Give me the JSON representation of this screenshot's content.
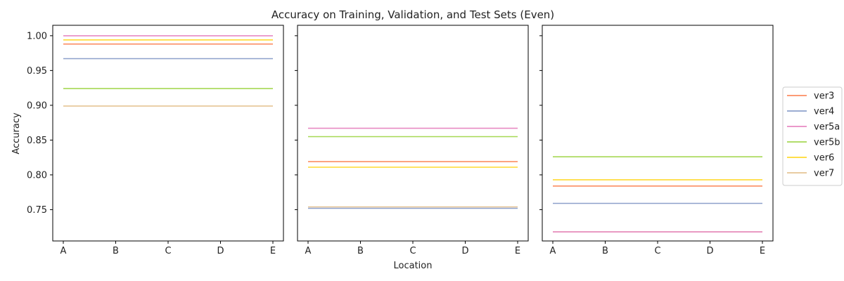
{
  "chart_data": {
    "type": "line",
    "title": "Accuracy on Training, Validation, and Test Sets (Even)",
    "xlabel": "Location",
    "ylabel": "Accuracy",
    "categories": [
      "A",
      "B",
      "C",
      "D",
      "E"
    ],
    "ylim": [
      0.705,
      1.015
    ],
    "yticks": [
      0.75,
      0.8,
      0.85,
      0.9,
      0.95,
      1.0
    ],
    "ytick_labels": [
      "0.75",
      "0.80",
      "0.85",
      "0.90",
      "0.95",
      "1.00"
    ],
    "grid": false,
    "legend_position": "right",
    "legend": [
      "ver3",
      "ver4",
      "ver5a",
      "ver5b",
      "ver6",
      "ver7"
    ],
    "colors": {
      "ver3": "#fc8d62",
      "ver4": "#8da0cb",
      "ver5a": "#e78ac3",
      "ver5b": "#a6d854",
      "ver6": "#ffd92f",
      "ver7": "#e5c494"
    },
    "panels": [
      {
        "series": [
          {
            "name": "ver5a",
            "values": [
              1.0,
              1.0,
              1.0,
              1.0,
              1.0
            ]
          },
          {
            "name": "ver6",
            "values": [
              0.994,
              0.994,
              0.994,
              0.994,
              0.994
            ]
          },
          {
            "name": "ver3",
            "values": [
              0.988,
              0.988,
              0.988,
              0.988,
              0.988
            ]
          },
          {
            "name": "ver4",
            "values": [
              0.967,
              0.967,
              0.967,
              0.967,
              0.967
            ]
          },
          {
            "name": "ver5b",
            "values": [
              0.924,
              0.924,
              0.924,
              0.924,
              0.924
            ]
          },
          {
            "name": "ver7",
            "values": [
              0.899,
              0.899,
              0.899,
              0.899,
              0.899
            ]
          }
        ]
      },
      {
        "series": [
          {
            "name": "ver5a",
            "values": [
              0.867,
              0.867,
              0.867,
              0.867,
              0.867
            ]
          },
          {
            "name": "ver5b",
            "values": [
              0.855,
              0.855,
              0.855,
              0.855,
              0.855
            ]
          },
          {
            "name": "ver3",
            "values": [
              0.819,
              0.819,
              0.819,
              0.819,
              0.819
            ]
          },
          {
            "name": "ver6",
            "values": [
              0.811,
              0.811,
              0.811,
              0.811,
              0.811
            ]
          },
          {
            "name": "ver7",
            "values": [
              0.754,
              0.754,
              0.754,
              0.754,
              0.754
            ]
          },
          {
            "name": "ver4",
            "values": [
              0.752,
              0.752,
              0.752,
              0.752,
              0.752
            ]
          }
        ]
      },
      {
        "series": [
          {
            "name": "ver5b",
            "values": [
              0.826,
              0.826,
              0.826,
              0.826,
              0.826
            ]
          },
          {
            "name": "ver6",
            "values": [
              0.793,
              0.793,
              0.793,
              0.793,
              0.793
            ]
          },
          {
            "name": "ver3",
            "values": [
              0.784,
              0.784,
              0.784,
              0.784,
              0.784
            ]
          },
          {
            "name": "ver4",
            "values": [
              0.759,
              0.759,
              0.759,
              0.759,
              0.759
            ]
          },
          {
            "name": "ver7",
            "values": [
              0.718,
              0.718,
              0.718,
              0.718,
              0.718
            ]
          },
          {
            "name": "ver5a",
            "values": [
              0.718,
              0.718,
              0.718,
              0.718,
              0.718
            ]
          }
        ]
      }
    ]
  }
}
